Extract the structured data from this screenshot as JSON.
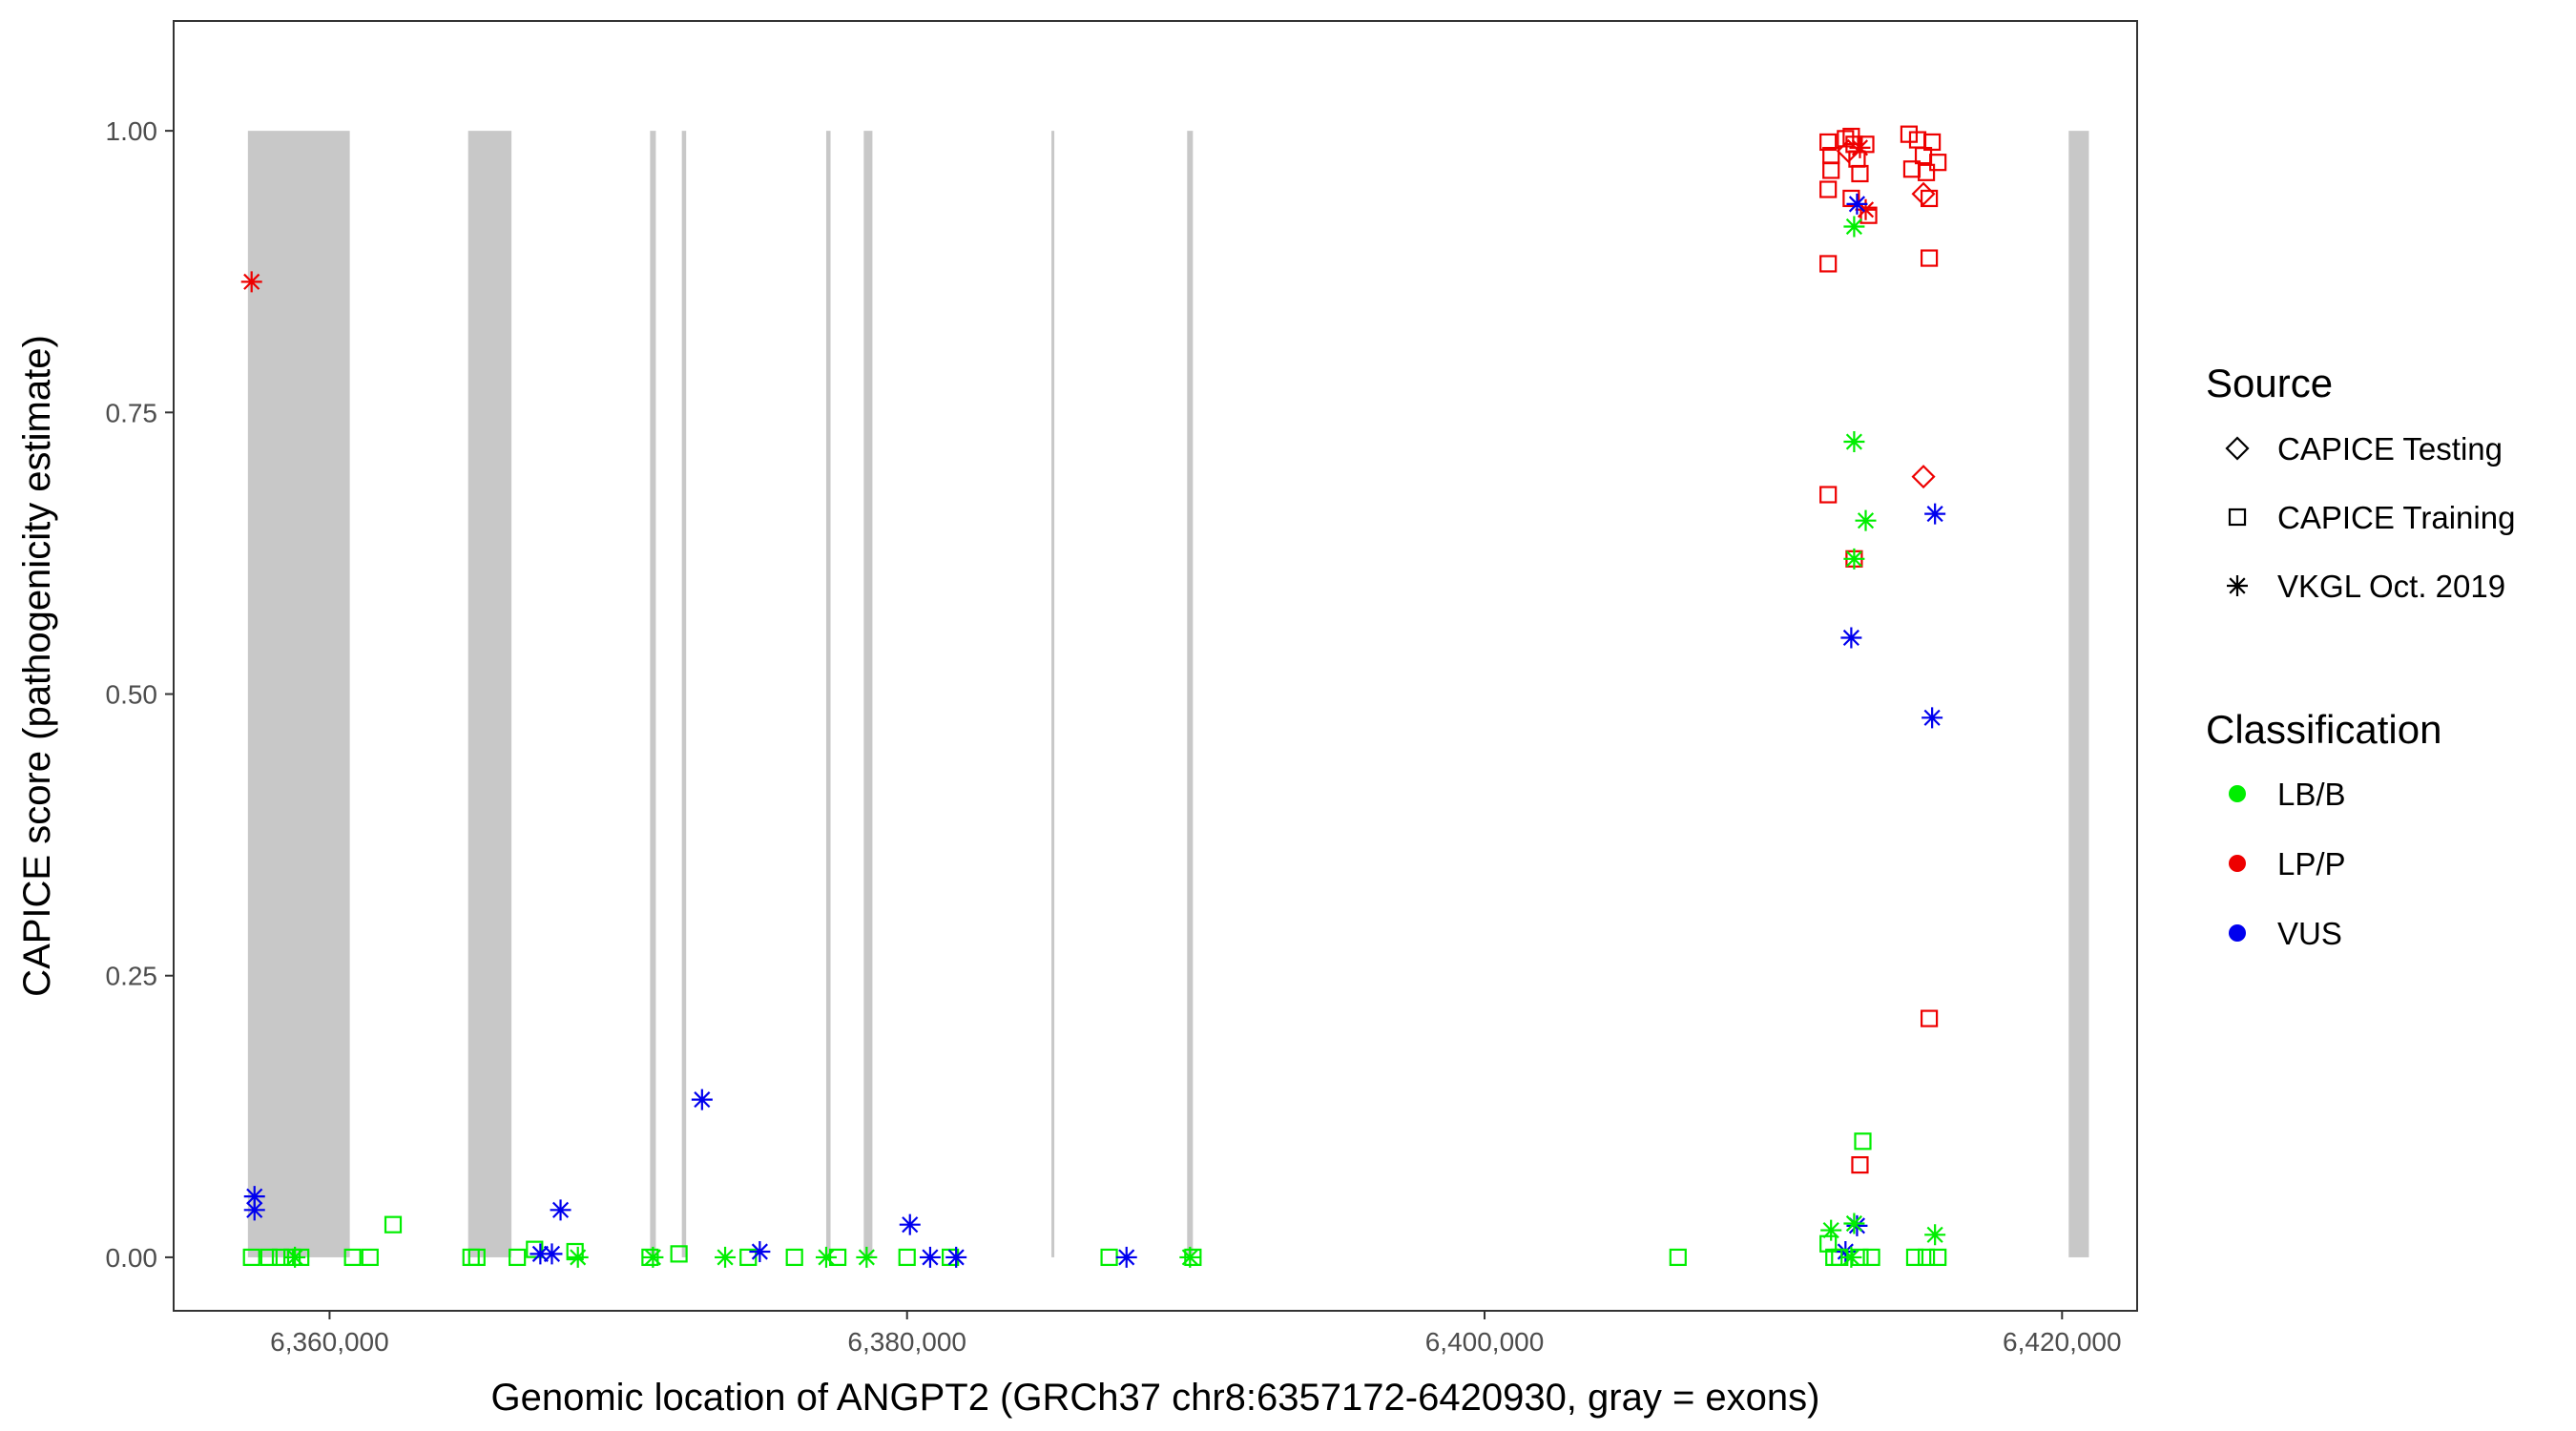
{
  "chart_data": {
    "type": "scatter",
    "xlabel": "Genomic location of ANGPT2 (GRCh37 chr8:6357172-6420930, gray = exons)",
    "ylabel": "CAPICE score (pathogenicity estimate)",
    "xlim": [
      6354600,
      6422600
    ],
    "ylim": [
      -0.0475,
      1.0975
    ],
    "x_ticks": [
      6360000,
      6380000,
      6400000,
      6420000
    ],
    "x_tick_labels": [
      "6,360,000",
      "6,380,000",
      "6,400,000",
      "6,420,000"
    ],
    "y_ticks": [
      0.0,
      0.25,
      0.5,
      0.75,
      1.0
    ],
    "y_tick_labels": [
      "0.00",
      "0.25",
      "0.50",
      "0.75",
      "1.00"
    ],
    "grid": false,
    "exon_color": "#c8c8c8",
    "exons": [
      [
        6357172,
        6360700
      ],
      [
        6364800,
        6366300
      ],
      [
        6371100,
        6371300
      ],
      [
        6372200,
        6372350
      ],
      [
        6377200,
        6377350
      ],
      [
        6378500,
        6378800
      ],
      [
        6385000,
        6385100
      ],
      [
        6389700,
        6389900
      ],
      [
        6420230,
        6420930
      ]
    ],
    "legend": {
      "source_title": "Source",
      "source_entries": [
        {
          "label": "CAPICE Testing",
          "shape": "diamond"
        },
        {
          "label": "CAPICE Training",
          "shape": "square"
        },
        {
          "label": "VKGL Oct. 2019",
          "shape": "asterisk"
        }
      ],
      "class_title": "Classification",
      "class_entries": [
        {
          "label": "LB/B",
          "color": "#00ee00"
        },
        {
          "label": "LP/P",
          "color": "#ee0000"
        },
        {
          "label": "VUS",
          "color": "#0000ee"
        }
      ]
    },
    "points": [
      {
        "x": 6357300,
        "y": 0.866,
        "source": "VKGL Oct. 2019",
        "class": "LP/P"
      },
      {
        "x": 6357400,
        "y": 0.054,
        "source": "VKGL Oct. 2019",
        "class": "VUS"
      },
      {
        "x": 6357400,
        "y": 0.042,
        "source": "VKGL Oct. 2019",
        "class": "VUS"
      },
      {
        "x": 6357300,
        "y": 0.0,
        "source": "CAPICE Training",
        "class": "LB/B"
      },
      {
        "x": 6357900,
        "y": 0.0,
        "source": "CAPICE Training",
        "class": "LB/B"
      },
      {
        "x": 6358300,
        "y": 0.0,
        "source": "CAPICE Training",
        "class": "LB/B"
      },
      {
        "x": 6358700,
        "y": 0.0,
        "source": "CAPICE Training",
        "class": "LB/B"
      },
      {
        "x": 6359000,
        "y": 0.0,
        "source": "CAPICE Training",
        "class": "LB/B"
      },
      {
        "x": 6358800,
        "y": 0.0,
        "source": "VKGL Oct. 2019",
        "class": "LB/B"
      },
      {
        "x": 6360800,
        "y": 0.0,
        "source": "CAPICE Training",
        "class": "LB/B"
      },
      {
        "x": 6361400,
        "y": 0.0,
        "source": "CAPICE Training",
        "class": "LB/B"
      },
      {
        "x": 6362200,
        "y": 0.029,
        "source": "CAPICE Training",
        "class": "LB/B"
      },
      {
        "x": 6364900,
        "y": 0.0,
        "source": "CAPICE Training",
        "class": "LB/B"
      },
      {
        "x": 6365100,
        "y": 0.0,
        "source": "CAPICE Training",
        "class": "LB/B"
      },
      {
        "x": 6366500,
        "y": 0.0,
        "source": "CAPICE Training",
        "class": "LB/B"
      },
      {
        "x": 6367100,
        "y": 0.007,
        "source": "CAPICE Training",
        "class": "LB/B"
      },
      {
        "x": 6367300,
        "y": 0.003,
        "source": "VKGL Oct. 2019",
        "class": "VUS"
      },
      {
        "x": 6367700,
        "y": 0.003,
        "source": "VKGL Oct. 2019",
        "class": "VUS"
      },
      {
        "x": 6368000,
        "y": 0.042,
        "source": "VKGL Oct. 2019",
        "class": "VUS"
      },
      {
        "x": 6368500,
        "y": 0.005,
        "source": "CAPICE Training",
        "class": "LB/B"
      },
      {
        "x": 6368600,
        "y": 0.0,
        "source": "VKGL Oct. 2019",
        "class": "LB/B"
      },
      {
        "x": 6371100,
        "y": 0.0,
        "source": "CAPICE Training",
        "class": "LB/B"
      },
      {
        "x": 6371200,
        "y": 0.0,
        "source": "VKGL Oct. 2019",
        "class": "LB/B"
      },
      {
        "x": 6372100,
        "y": 0.003,
        "source": "CAPICE Training",
        "class": "LB/B"
      },
      {
        "x": 6372900,
        "y": 0.14,
        "source": "VKGL Oct. 2019",
        "class": "VUS"
      },
      {
        "x": 6373700,
        "y": 0.0,
        "source": "VKGL Oct. 2019",
        "class": "LB/B"
      },
      {
        "x": 6374500,
        "y": 0.0,
        "source": "CAPICE Training",
        "class": "LB/B"
      },
      {
        "x": 6374900,
        "y": 0.005,
        "source": "VKGL Oct. 2019",
        "class": "VUS"
      },
      {
        "x": 6376100,
        "y": 0.0,
        "source": "CAPICE Training",
        "class": "LB/B"
      },
      {
        "x": 6377200,
        "y": 0.0,
        "source": "VKGL Oct. 2019",
        "class": "LB/B"
      },
      {
        "x": 6377600,
        "y": 0.0,
        "source": "CAPICE Training",
        "class": "LB/B"
      },
      {
        "x": 6378600,
        "y": 0.0,
        "source": "VKGL Oct. 2019",
        "class": "LB/B"
      },
      {
        "x": 6380000,
        "y": 0.0,
        "source": "CAPICE Training",
        "class": "LB/B"
      },
      {
        "x": 6380100,
        "y": 0.029,
        "source": "VKGL Oct. 2019",
        "class": "VUS"
      },
      {
        "x": 6380800,
        "y": 0.0,
        "source": "VKGL Oct. 2019",
        "class": "VUS"
      },
      {
        "x": 6381500,
        "y": 0.0,
        "source": "CAPICE Training",
        "class": "LB/B"
      },
      {
        "x": 6381700,
        "y": 0.0,
        "source": "VKGL Oct. 2019",
        "class": "VUS"
      },
      {
        "x": 6387000,
        "y": 0.0,
        "source": "CAPICE Training",
        "class": "LB/B"
      },
      {
        "x": 6387600,
        "y": 0.0,
        "source": "VKGL Oct. 2019",
        "class": "VUS"
      },
      {
        "x": 6389800,
        "y": 0.0,
        "source": "VKGL Oct. 2019",
        "class": "LB/B"
      },
      {
        "x": 6389900,
        "y": 0.0,
        "source": "CAPICE Training",
        "class": "LB/B"
      },
      {
        "x": 6406700,
        "y": 0.0,
        "source": "CAPICE Training",
        "class": "LB/B"
      },
      {
        "x": 6411900,
        "y": 0.99,
        "source": "CAPICE Training",
        "class": "LP/P"
      },
      {
        "x": 6412000,
        "y": 0.978,
        "source": "CAPICE Training",
        "class": "LP/P"
      },
      {
        "x": 6412000,
        "y": 0.965,
        "source": "CAPICE Training",
        "class": "LP/P"
      },
      {
        "x": 6411900,
        "y": 0.948,
        "source": "CAPICE Training",
        "class": "LP/P"
      },
      {
        "x": 6411900,
        "y": 0.882,
        "source": "CAPICE Training",
        "class": "LP/P"
      },
      {
        "x": 6411900,
        "y": 0.677,
        "source": "CAPICE Training",
        "class": "LP/P"
      },
      {
        "x": 6412500,
        "y": 0.993,
        "source": "CAPICE Training",
        "class": "LP/P"
      },
      {
        "x": 6412700,
        "y": 0.995,
        "source": "CAPICE Training",
        "class": "LP/P"
      },
      {
        "x": 6412800,
        "y": 0.988,
        "source": "CAPICE Training",
        "class": "LP/P"
      },
      {
        "x": 6412600,
        "y": 0.982,
        "source": "CAPICE Testing",
        "class": "LP/P"
      },
      {
        "x": 6413000,
        "y": 0.985,
        "source": "VKGL Oct. 2019",
        "class": "LP/P"
      },
      {
        "x": 6412900,
        "y": 0.975,
        "source": "CAPICE Training",
        "class": "LP/P"
      },
      {
        "x": 6413200,
        "y": 0.988,
        "source": "CAPICE Training",
        "class": "LP/P"
      },
      {
        "x": 6413000,
        "y": 0.962,
        "source": "CAPICE Training",
        "class": "LP/P"
      },
      {
        "x": 6412700,
        "y": 0.94,
        "source": "CAPICE Training",
        "class": "LP/P"
      },
      {
        "x": 6413200,
        "y": 0.93,
        "source": "VKGL Oct. 2019",
        "class": "LP/P"
      },
      {
        "x": 6413300,
        "y": 0.925,
        "source": "CAPICE Training",
        "class": "LP/P"
      },
      {
        "x": 6412900,
        "y": 0.935,
        "source": "VKGL Oct. 2019",
        "class": "VUS"
      },
      {
        "x": 6412800,
        "y": 0.915,
        "source": "VKGL Oct. 2019",
        "class": "LB/B"
      },
      {
        "x": 6412800,
        "y": 0.724,
        "source": "VKGL Oct. 2019",
        "class": "LB/B"
      },
      {
        "x": 6413200,
        "y": 0.654,
        "source": "VKGL Oct. 2019",
        "class": "LB/B"
      },
      {
        "x": 6412800,
        "y": 0.62,
        "source": "CAPICE Training",
        "class": "LP/P"
      },
      {
        "x": 6412800,
        "y": 0.62,
        "source": "VKGL Oct. 2019",
        "class": "LB/B"
      },
      {
        "x": 6412700,
        "y": 0.55,
        "source": "VKGL Oct. 2019",
        "class": "VUS"
      },
      {
        "x": 6413100,
        "y": 0.103,
        "source": "CAPICE Training",
        "class": "LB/B"
      },
      {
        "x": 6413000,
        "y": 0.082,
        "source": "CAPICE Training",
        "class": "LP/P"
      },
      {
        "x": 6412900,
        "y": 0.028,
        "source": "VKGL Oct. 2019",
        "class": "VUS"
      },
      {
        "x": 6412800,
        "y": 0.03,
        "source": "VKGL Oct. 2019",
        "class": "LB/B"
      },
      {
        "x": 6412000,
        "y": 0.024,
        "source": "VKGL Oct. 2019",
        "class": "LB/B"
      },
      {
        "x": 6412500,
        "y": 0.005,
        "source": "VKGL Oct. 2019",
        "class": "VUS"
      },
      {
        "x": 6411900,
        "y": 0.012,
        "source": "CAPICE Training",
        "class": "LB/B"
      },
      {
        "x": 6412100,
        "y": 0.0,
        "source": "CAPICE Training",
        "class": "LB/B"
      },
      {
        "x": 6412300,
        "y": 0.0,
        "source": "CAPICE Training",
        "class": "LB/B"
      },
      {
        "x": 6412700,
        "y": 0.0,
        "source": "VKGL Oct. 2019",
        "class": "LB/B"
      },
      {
        "x": 6413000,
        "y": 0.0,
        "source": "CAPICE Training",
        "class": "LB/B"
      },
      {
        "x": 6413400,
        "y": 0.0,
        "source": "CAPICE Training",
        "class": "LB/B"
      },
      {
        "x": 6414700,
        "y": 0.997,
        "source": "CAPICE Training",
        "class": "LP/P"
      },
      {
        "x": 6415000,
        "y": 0.992,
        "source": "CAPICE Training",
        "class": "LP/P"
      },
      {
        "x": 6415500,
        "y": 0.99,
        "source": "CAPICE Training",
        "class": "LP/P"
      },
      {
        "x": 6415200,
        "y": 0.978,
        "source": "CAPICE Training",
        "class": "LP/P"
      },
      {
        "x": 6415700,
        "y": 0.972,
        "source": "CAPICE Training",
        "class": "LP/P"
      },
      {
        "x": 6414800,
        "y": 0.966,
        "source": "CAPICE Training",
        "class": "LP/P"
      },
      {
        "x": 6415300,
        "y": 0.963,
        "source": "CAPICE Training",
        "class": "LP/P"
      },
      {
        "x": 6415200,
        "y": 0.944,
        "source": "CAPICE Testing",
        "class": "LP/P"
      },
      {
        "x": 6415400,
        "y": 0.94,
        "source": "CAPICE Training",
        "class": "LP/P"
      },
      {
        "x": 6415400,
        "y": 0.887,
        "source": "CAPICE Training",
        "class": "LP/P"
      },
      {
        "x": 6415200,
        "y": 0.693,
        "source": "CAPICE Testing",
        "class": "LP/P"
      },
      {
        "x": 6415600,
        "y": 0.66,
        "source": "VKGL Oct. 2019",
        "class": "VUS"
      },
      {
        "x": 6415500,
        "y": 0.479,
        "source": "VKGL Oct. 2019",
        "class": "VUS"
      },
      {
        "x": 6415400,
        "y": 0.212,
        "source": "CAPICE Training",
        "class": "LP/P"
      },
      {
        "x": 6415600,
        "y": 0.02,
        "source": "VKGL Oct. 2019",
        "class": "LB/B"
      },
      {
        "x": 6414900,
        "y": 0.0,
        "source": "CAPICE Training",
        "class": "LB/B"
      },
      {
        "x": 6415300,
        "y": 0.0,
        "source": "CAPICE Training",
        "class": "LB/B"
      },
      {
        "x": 6415700,
        "y": 0.0,
        "source": "CAPICE Training",
        "class": "LB/B"
      }
    ]
  }
}
